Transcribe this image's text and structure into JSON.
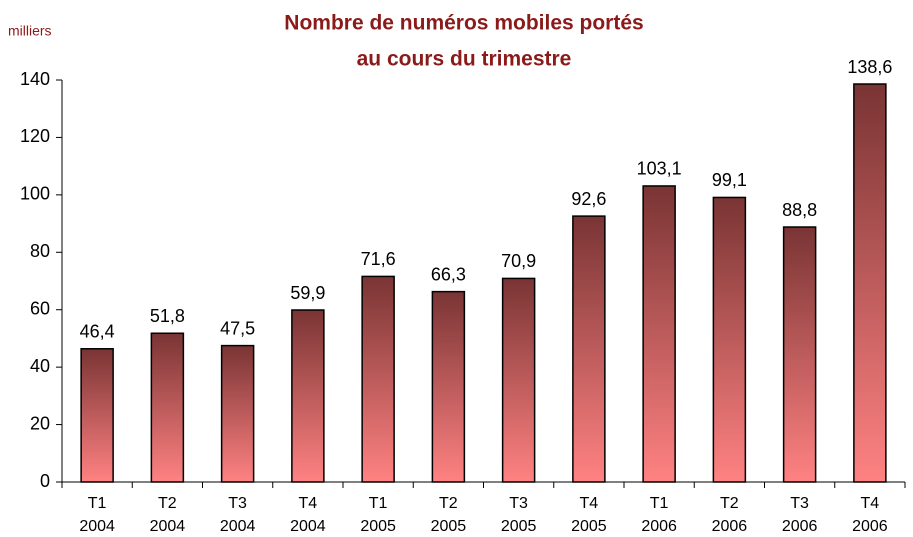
{
  "chart_data": {
    "type": "bar",
    "title": [
      "Nombre de numéros mobiles portés",
      "au cours du trimestre"
    ],
    "y_label": "milliers",
    "categories": [
      [
        "T1",
        "2004"
      ],
      [
        "T2",
        "2004"
      ],
      [
        "T3",
        "2004"
      ],
      [
        "T4",
        "2004"
      ],
      [
        "T1",
        "2005"
      ],
      [
        "T2",
        "2005"
      ],
      [
        "T3",
        "2005"
      ],
      [
        "T4",
        "2005"
      ],
      [
        "T1",
        "2006"
      ],
      [
        "T2",
        "2006"
      ],
      [
        "T3",
        "2006"
      ],
      [
        "T4",
        "2006"
      ]
    ],
    "values": [
      46.4,
      51.8,
      47.5,
      59.9,
      71.6,
      66.3,
      70.9,
      92.6,
      103.1,
      99.1,
      88.8,
      138.6
    ],
    "value_labels": [
      "46,4",
      "51,8",
      "47,5",
      "59,9",
      "71,6",
      "66,3",
      "70,9",
      "92,6",
      "103,1",
      "99,1",
      "88,8",
      "138,6"
    ],
    "color": [
      "#7a3434",
      "#ff8282"
    ],
    "ylim": [
      0,
      140
    ],
    "yticks": [
      0,
      20,
      40,
      60,
      80,
      100,
      120,
      140
    ],
    "grid": false
  }
}
